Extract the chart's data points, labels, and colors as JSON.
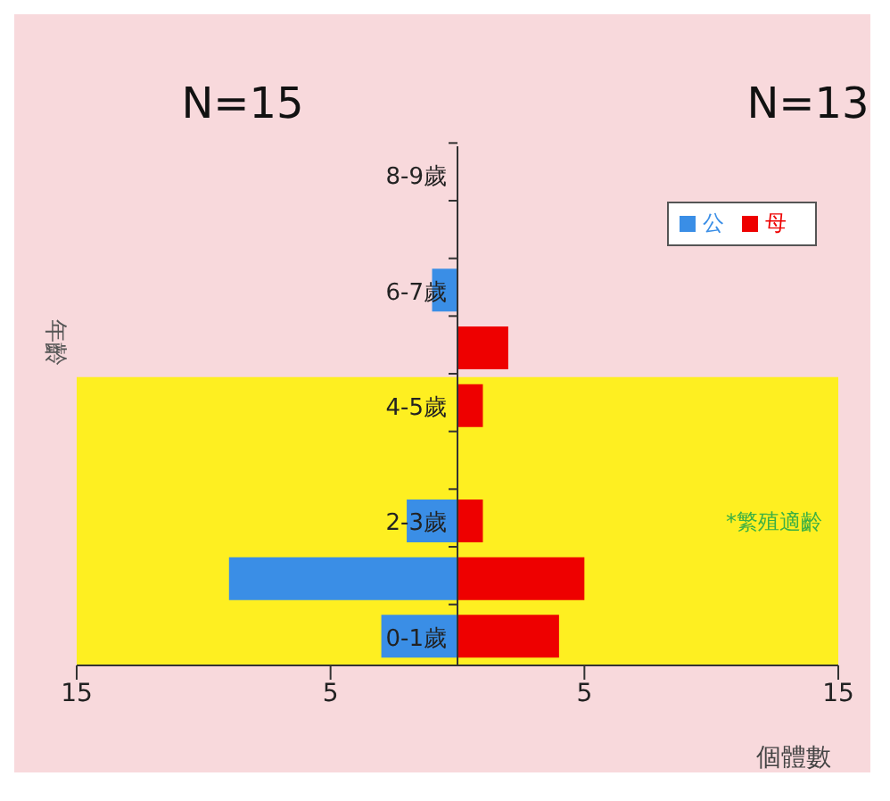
{
  "chart_data": {
    "type": "bar",
    "orientation": "horizontal",
    "stacked": true,
    "categories": [
      "8-9歲",
      null,
      "6-7歲",
      null,
      "4-5歲",
      null,
      "2-3歲",
      null,
      "0-1歲"
    ],
    "series": [
      {
        "name": "公",
        "color": "#3a8ee6",
        "values": [
          0,
          0,
          -1,
          0,
          0,
          0,
          -2,
          -9,
          -3
        ]
      },
      {
        "name": "母",
        "color": "#ee0000",
        "values": [
          0,
          0,
          0,
          2,
          1,
          0,
          1,
          5,
          4
        ]
      }
    ],
    "xlim": [
      -15,
      15
    ],
    "xticks": [
      {
        "value": -15,
        "label": "15"
      },
      {
        "value": -5,
        "label": "5"
      },
      5,
      15
    ],
    "xlabel": "個體數",
    "ylabel": "年齡",
    "bands": [
      {
        "axis": "y",
        "from": "0-1歲",
        "to": "4-5歲",
        "label": "*繁殖適齡",
        "color": "#fff200"
      }
    ],
    "annotations": [
      "N=15",
      "N=13"
    ],
    "legend": "top right",
    "grid": false
  }
}
